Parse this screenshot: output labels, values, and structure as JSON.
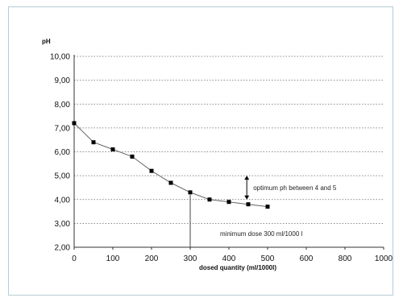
{
  "chart_data": {
    "type": "line",
    "title": "",
    "xlabel": "dosed quantity (ml/1000l)",
    "ylabel": "pH",
    "xlim": [
      0,
      1000
    ],
    "ylim": [
      2.0,
      10.0
    ],
    "x_ticks": [
      "0",
      "100",
      "200",
      "300",
      "400",
      "500",
      "600",
      "800",
      "1000"
    ],
    "y_ticks": [
      "2,00",
      "3,00",
      "4,00",
      "5,00",
      "6,00",
      "7,00",
      "8,00",
      "9,00",
      "10,00"
    ],
    "grid": "horizontal dotted",
    "series": [
      {
        "x": [
          0,
          50,
          100,
          150,
          200,
          250,
          300,
          350,
          400,
          450,
          500
        ],
        "y": [
          7.2,
          6.4,
          6.1,
          5.8,
          5.2,
          4.7,
          4.3,
          4.0,
          3.9,
          3.8,
          3.7
        ],
        "marker": "square",
        "color": "#000000"
      }
    ],
    "annotations": [
      {
        "text": "optimum ph between 4 and 5",
        "range_y": [
          4.0,
          5.0
        ],
        "at_x": 440
      },
      {
        "text": "minimum dose 300 ml/1000 l",
        "at_x": 300
      }
    ]
  }
}
